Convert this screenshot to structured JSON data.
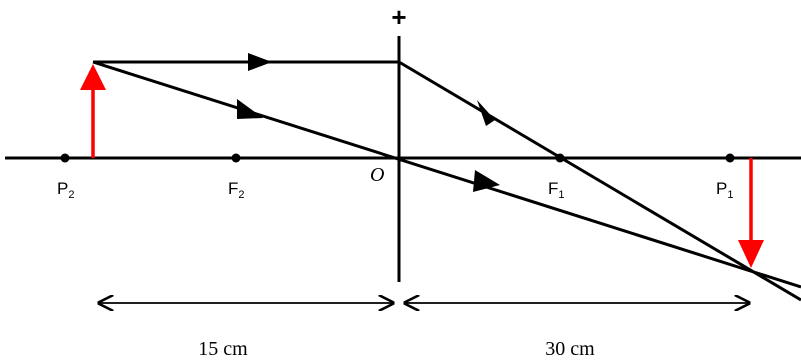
{
  "lens": {
    "sign": "+"
  },
  "points": {
    "p2": {
      "main": "P",
      "sub": "2"
    },
    "f2": {
      "main": "F",
      "sub": "2"
    },
    "o": {
      "main": "O"
    },
    "f1": {
      "main": "F",
      "sub": "1"
    },
    "p1": {
      "main": "P",
      "sub": "1"
    }
  },
  "distances": {
    "object": "15 cm",
    "image": "30 cm"
  },
  "colors": {
    "rays": "#000000",
    "object_arrow": "#ff0000",
    "image_arrow": "#ff0000"
  }
}
